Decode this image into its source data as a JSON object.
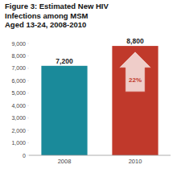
{
  "chart_data": {
    "type": "bar",
    "title": "Figure 3: Estimated New HIV\nInfections among MSM\nAged 13-24, 2008-2010",
    "categories": [
      "2008",
      "2010"
    ],
    "values": [
      7200,
      8800
    ],
    "value_labels": [
      "7,200",
      "8,800"
    ],
    "data_labels": true,
    "colors": [
      "#1a8a9a",
      "#c0392b"
    ],
    "annotation": "22%",
    "ylim": [
      0,
      9000
    ],
    "yticks": [
      0,
      {
        "value": 1000,
        "label": "1,000"
      },
      {
        "value": 2000,
        "label": "2,000"
      },
      {
        "value": 3000,
        "label": "3,000"
      },
      {
        "value": 4000,
        "label": "4,000"
      },
      {
        "value": 5000,
        "label": "5,000"
      },
      {
        "value": 6000,
        "label": "6,000"
      },
      {
        "value": 7000,
        "label": "7,000"
      },
      {
        "value": 8000,
        "label": "8,000"
      },
      {
        "value": 9000,
        "label": "9,000"
      }
    ],
    "grid": false
  }
}
